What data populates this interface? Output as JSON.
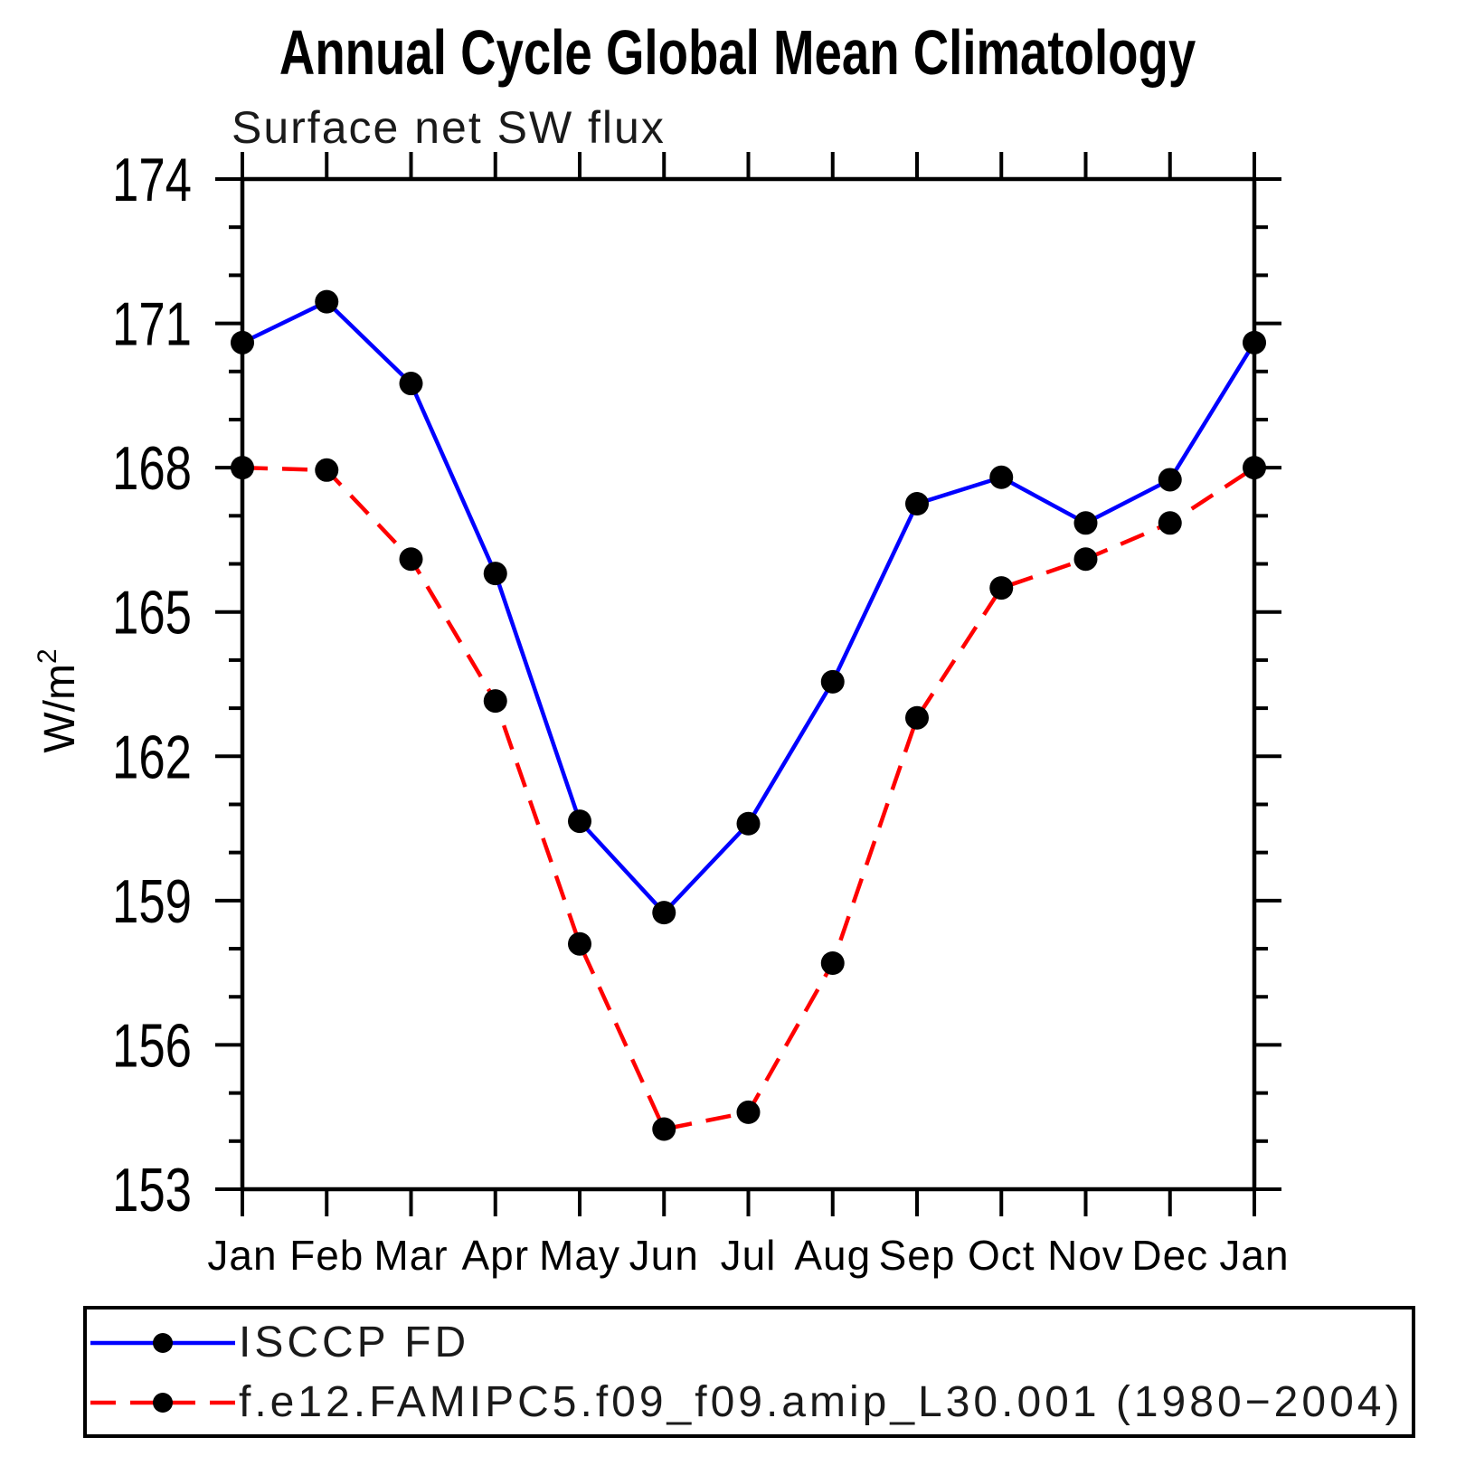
{
  "page": {
    "background": "#ffffff"
  },
  "chart_data": {
    "type": "line",
    "title": "Annual Cycle Global Mean Climatology",
    "subtitle": "Surface net SW flux",
    "ylabel": "W/m²",
    "ylabel_parts": {
      "base": "W/m",
      "sup": "2"
    },
    "xlabel": "",
    "categories": [
      "Jan",
      "Feb",
      "Mar",
      "Apr",
      "May",
      "Jun",
      "Jul",
      "Aug",
      "Sep",
      "Oct",
      "Nov",
      "Dec",
      "Jan"
    ],
    "series": [
      {
        "name": "ISCCP FD",
        "color": "#0000ff",
        "line_style": "solid",
        "marker": "filled-circle",
        "marker_color": "#000000",
        "values": [
          170.6,
          171.45,
          169.75,
          165.8,
          160.65,
          158.75,
          160.6,
          163.55,
          167.25,
          167.8,
          166.85,
          167.75,
          170.6
        ]
      },
      {
        "name": "f.e12.FAMIPC5.f09_f09.amip_L30.001 (1980−2004)",
        "color": "#ff0000",
        "line_style": "dashed",
        "marker": "filled-circle",
        "marker_color": "#000000",
        "values": [
          168.0,
          167.95,
          166.1,
          163.15,
          158.1,
          154.25,
          154.6,
          157.7,
          162.8,
          165.5,
          166.1,
          166.85,
          168.0
        ]
      }
    ],
    "y_axis": {
      "min": 153,
      "max": 174,
      "major_step": 3,
      "minor_step": 1,
      "tick_labels": [
        "153",
        "156",
        "159",
        "162",
        "165",
        "168",
        "171",
        "174"
      ]
    },
    "x_axis": {
      "ticks_at_every_category": true
    },
    "grid": false,
    "legend_position": "bottom"
  },
  "colors": {
    "axis": "#000000",
    "text": "#1a1a1a",
    "marker": "#000000"
  }
}
